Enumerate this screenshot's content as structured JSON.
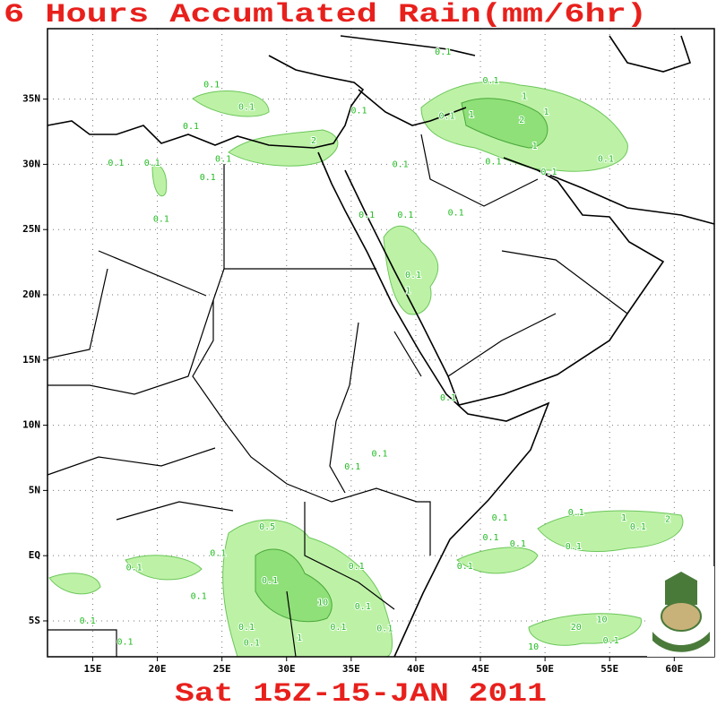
{
  "header": {
    "title": "6 Hours Accumlated Rain(mm/6hr)"
  },
  "footer": {
    "date": "Sat 15Z-15-JAN 2011"
  },
  "map": {
    "xlim": [
      11.5,
      63.1
    ],
    "ylim": [
      -7.75,
      40.4
    ],
    "xticks": [
      {
        "value": 15,
        "label": "15E"
      },
      {
        "value": 20,
        "label": "20E"
      },
      {
        "value": 25,
        "label": "25E"
      },
      {
        "value": 30,
        "label": "30E"
      },
      {
        "value": 35,
        "label": "35E"
      },
      {
        "value": 40,
        "label": "40E"
      },
      {
        "value": 45,
        "label": "45E"
      },
      {
        "value": 50,
        "label": "50E"
      },
      {
        "value": 55,
        "label": "55E"
      },
      {
        "value": 60,
        "label": "60E"
      }
    ],
    "yticks": [
      {
        "value": 35,
        "label": "35N"
      },
      {
        "value": 30,
        "label": "30N"
      },
      {
        "value": 25,
        "label": "25N"
      },
      {
        "value": 20,
        "label": "20N"
      },
      {
        "value": 15,
        "label": "15N"
      },
      {
        "value": 10,
        "label": "10N"
      },
      {
        "value": 5,
        "label": "5N"
      },
      {
        "value": 0,
        "label": "EQ"
      },
      {
        "value": -5,
        "label": "5S"
      }
    ],
    "grid": true,
    "contour_labels": [
      {
        "text": "0.1",
        "lon": 42.1,
        "lat": 38.6
      },
      {
        "text": "0.1",
        "lon": 45.8,
        "lat": 36.4
      },
      {
        "text": "1",
        "lon": 48.4,
        "lat": 35.2
      },
      {
        "text": "1",
        "lon": 44.3,
        "lat": 33.8
      },
      {
        "text": "2",
        "lon": 48.2,
        "lat": 33.4
      },
      {
        "text": "1",
        "lon": 50.1,
        "lat": 34.0
      },
      {
        "text": "1",
        "lon": 49.2,
        "lat": 31.4
      },
      {
        "text": "0.1",
        "lon": 54.7,
        "lat": 30.4
      },
      {
        "text": "0.1",
        "lon": 46.0,
        "lat": 30.2
      },
      {
        "text": "0.1",
        "lon": 50.3,
        "lat": 29.4
      },
      {
        "text": "0.1",
        "lon": 42.4,
        "lat": 33.7
      },
      {
        "text": "0.1",
        "lon": 38.8,
        "lat": 30.0
      },
      {
        "text": "0.1",
        "lon": 43.1,
        "lat": 26.3
      },
      {
        "text": "0.1",
        "lon": 39.2,
        "lat": 26.1
      },
      {
        "text": "0.1",
        "lon": 36.2,
        "lat": 26.1
      },
      {
        "text": "0.1",
        "lon": 39.8,
        "lat": 21.5
      },
      {
        "text": "1",
        "lon": 39.4,
        "lat": 20.3
      },
      {
        "text": "0.1",
        "lon": 35.6,
        "lat": 34.1
      },
      {
        "text": "0.1",
        "lon": 24.2,
        "lat": 36.1
      },
      {
        "text": "0.1",
        "lon": 26.9,
        "lat": 34.4
      },
      {
        "text": "0.1",
        "lon": 22.6,
        "lat": 32.9
      },
      {
        "text": "0.1",
        "lon": 16.8,
        "lat": 30.1
      },
      {
        "text": "0.1",
        "lon": 19.6,
        "lat": 30.1
      },
      {
        "text": "0.1",
        "lon": 23.9,
        "lat": 29.0
      },
      {
        "text": "0.1",
        "lon": 20.3,
        "lat": 25.8
      },
      {
        "text": "0.1",
        "lon": 25.1,
        "lat": 30.4
      },
      {
        "text": "2",
        "lon": 32.1,
        "lat": 31.8
      },
      {
        "text": "0.1",
        "lon": 42.5,
        "lat": 12.1
      },
      {
        "text": "0.1",
        "lon": 37.2,
        "lat": 7.8
      },
      {
        "text": "0.1",
        "lon": 35.1,
        "lat": 6.8
      },
      {
        "text": "0.1",
        "lon": 46.5,
        "lat": 2.9
      },
      {
        "text": "0.1",
        "lon": 45.8,
        "lat": 1.4
      },
      {
        "text": "0.1",
        "lon": 47.9,
        "lat": 0.9
      },
      {
        "text": "0.1",
        "lon": 52.4,
        "lat": 3.3
      },
      {
        "text": "1",
        "lon": 56.1,
        "lat": 2.9
      },
      {
        "text": "2",
        "lon": 59.5,
        "lat": 2.8
      },
      {
        "text": "0.1",
        "lon": 52.2,
        "lat": 0.7
      },
      {
        "text": "0.1",
        "lon": 57.2,
        "lat": 2.2
      },
      {
        "text": "0.1",
        "lon": 43.8,
        "lat": -0.8
      },
      {
        "text": "0.1",
        "lon": 35.4,
        "lat": -0.8
      },
      {
        "text": "0.1",
        "lon": 24.7,
        "lat": 0.2
      },
      {
        "text": "0.1",
        "lon": 18.2,
        "lat": -0.9
      },
      {
        "text": "0.1",
        "lon": 23.2,
        "lat": -3.1
      },
      {
        "text": "0.1",
        "lon": 14.6,
        "lat": -5.0
      },
      {
        "text": "0.1",
        "lon": 17.5,
        "lat": -6.6
      },
      {
        "text": "0.5",
        "lon": 28.5,
        "lat": 2.2
      },
      {
        "text": "10",
        "lon": 32.8,
        "lat": -3.6
      },
      {
        "text": "0.1",
        "lon": 28.7,
        "lat": -1.9
      },
      {
        "text": "10",
        "lon": 54.4,
        "lat": -4.9
      },
      {
        "text": "20",
        "lon": 52.4,
        "lat": -5.5
      },
      {
        "text": "0.1",
        "lon": 55.1,
        "lat": -6.5
      },
      {
        "text": "10",
        "lon": 49.1,
        "lat": -7.0
      },
      {
        "text": "0.1",
        "lon": 35.9,
        "lat": -3.9
      },
      {
        "text": "0.1",
        "lon": 37.6,
        "lat": -5.6
      },
      {
        "text": "0.1",
        "lon": 34.0,
        "lat": -5.5
      },
      {
        "text": "0.1",
        "lon": 26.9,
        "lat": -5.5
      },
      {
        "text": "0.1",
        "lon": 27.3,
        "lat": -6.7
      },
      {
        "text": "1",
        "lon": 31.0,
        "lat": -6.3
      }
    ]
  }
}
